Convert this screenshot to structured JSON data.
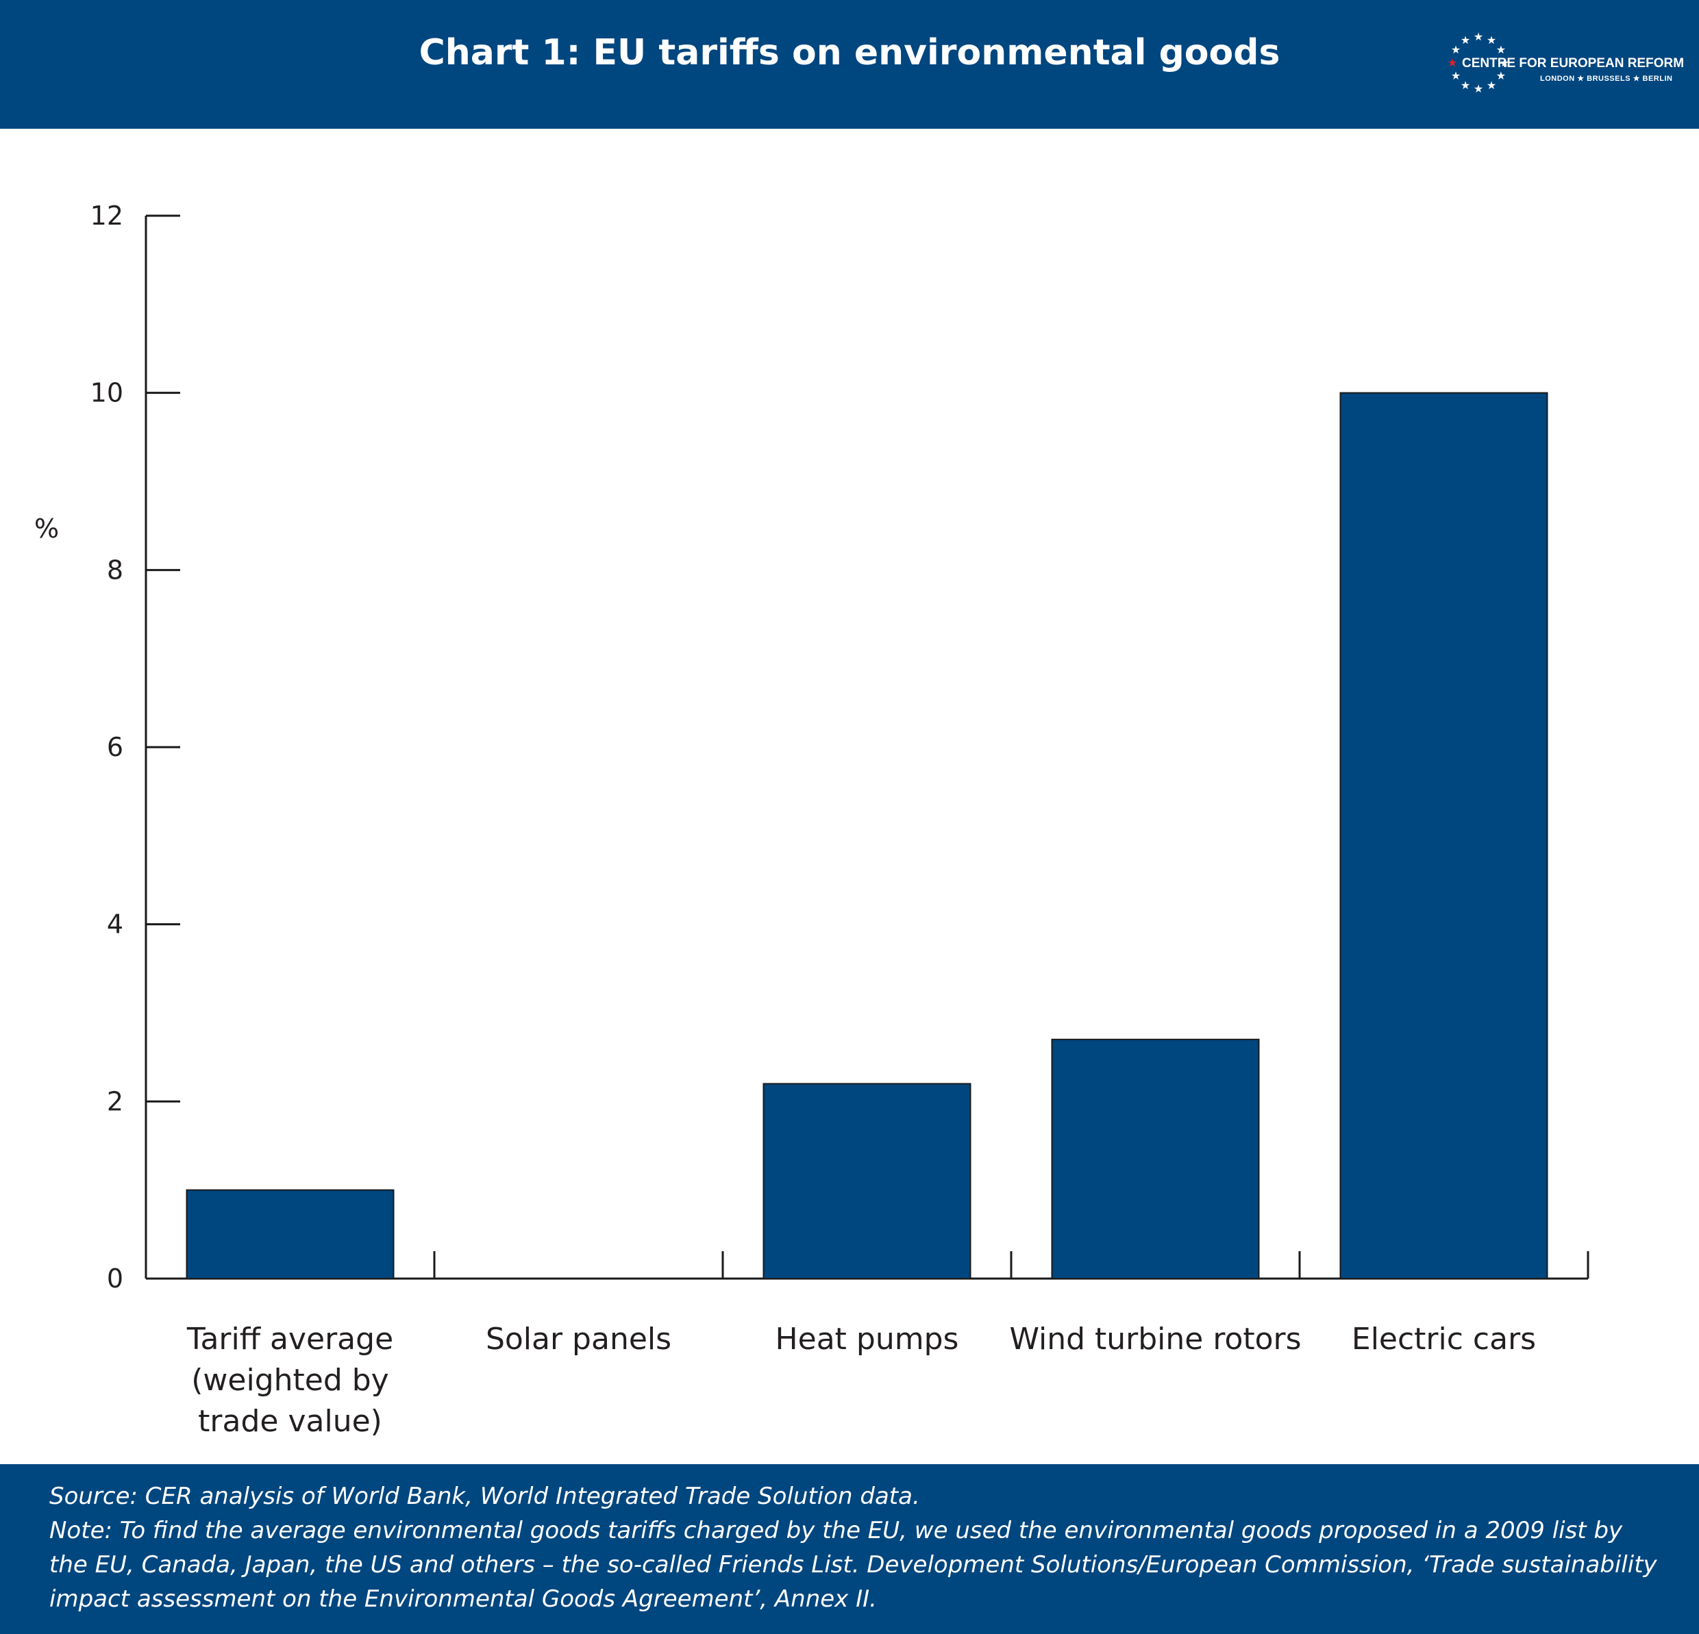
{
  "header": {
    "title": "Chart 1: EU tariffs on environmental goods",
    "logo": {
      "name": "CENTRE FOR EUROPEAN REFORM",
      "cities": "LONDON ★ BRUSSELS ★ BERLIN",
      "icon": "star-ring-icon"
    }
  },
  "chart_data": {
    "type": "bar",
    "categories": [
      "Tariff average (weighted by trade value)",
      "Solar panels",
      "Heat pumps",
      "Wind turbine rotors",
      "Electric cars"
    ],
    "category_lines": [
      [
        "Tariff average",
        "(weighted by",
        "trade value)"
      ],
      [
        "Solar panels"
      ],
      [
        "Heat pumps"
      ],
      [
        "Wind turbine rotors"
      ],
      [
        "Electric cars"
      ]
    ],
    "values": [
      1.0,
      0,
      2.2,
      2.7,
      10.0
    ],
    "ylabel": "%",
    "ylim": [
      0,
      12
    ],
    "yticks": [
      0,
      2,
      4,
      6,
      8,
      10,
      12
    ],
    "grid": false,
    "bar_color": "#00467f",
    "bar_stroke": "#1a1a1a"
  },
  "footer": {
    "source": "Source: CER analysis of World Bank, World Integrated Trade Solution data.",
    "note": "Note: To find the average environmental goods tariffs charged by the EU, we used the environmental goods proposed in a 2009 list by the EU, Canada, Japan, the US and others – the so-called Friends List. Development Solutions/European Commission, ‘Trade sustainability impact assessment on the Environmental Goods Agreement’, Annex II."
  },
  "colors": {
    "brand": "#00467f",
    "accent": "#e4202f",
    "text": "#231f20"
  }
}
